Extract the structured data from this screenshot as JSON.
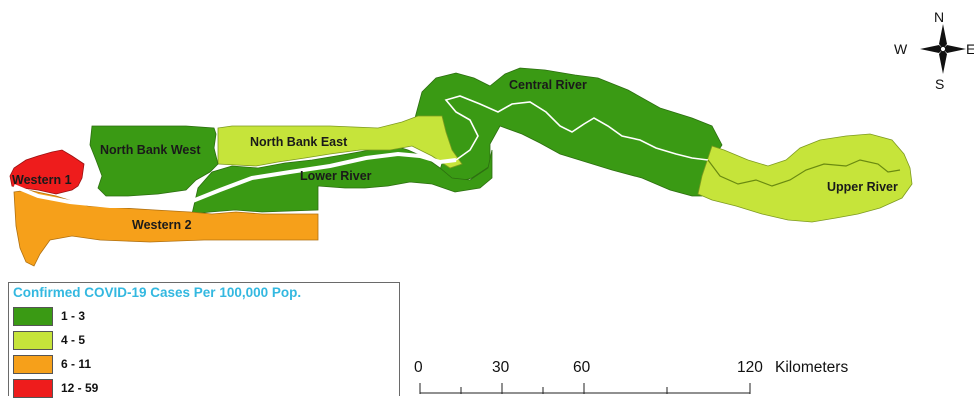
{
  "map": {
    "regions": [
      {
        "id": "western-1",
        "label": "Western 1",
        "class_label": "12 - 59"
      },
      {
        "id": "western-2",
        "label": "Western 2",
        "class_label": "6 - 11"
      },
      {
        "id": "north-bank-west",
        "label": "North Bank West",
        "class_label": "1 - 3"
      },
      {
        "id": "north-bank-east",
        "label": "North Bank East",
        "class_label": "4 - 5"
      },
      {
        "id": "lower-river",
        "label": "Lower River",
        "class_label": "1 - 3"
      },
      {
        "id": "central-river",
        "label": "Central River",
        "class_label": "1 - 3"
      },
      {
        "id": "upper-river",
        "label": "Upper River",
        "class_label": "4 - 5"
      }
    ]
  },
  "legend": {
    "title": "Confirmed COVID-19 Cases Per 100,000 Pop.",
    "items": [
      {
        "label": "1 - 3",
        "color": "#3a9a14"
      },
      {
        "label": "4 - 5",
        "color": "#c6e43a"
      },
      {
        "label": "6 - 11",
        "color": "#f6a01a"
      },
      {
        "label": "12 - 59",
        "color": "#ee1c1c"
      }
    ]
  },
  "scale_bar": {
    "ticks": [
      "0",
      "30",
      "60",
      "120"
    ],
    "unit": "Kilometers"
  },
  "compass": {
    "n": "N",
    "s": "S",
    "e": "E",
    "w": "W"
  }
}
